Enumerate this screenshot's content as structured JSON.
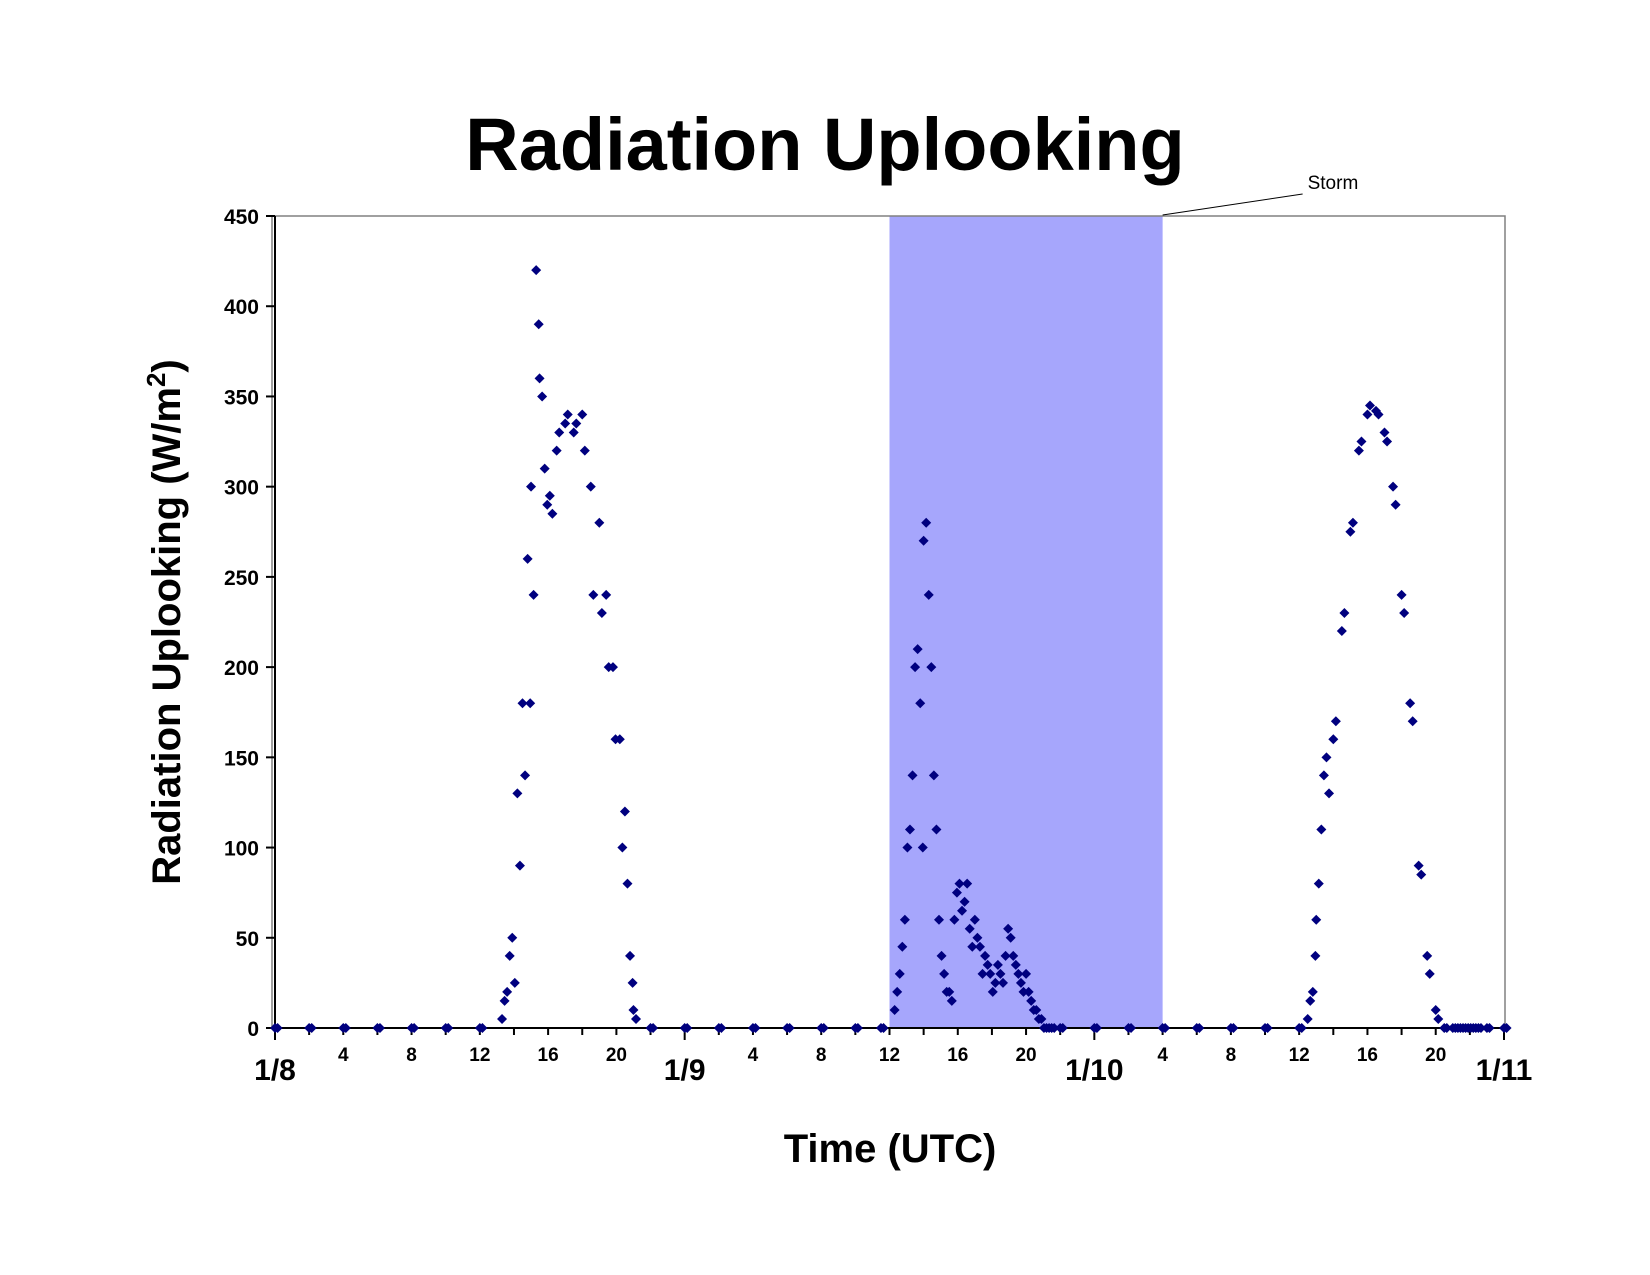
{
  "chart_data": {
    "type": "scatter",
    "title": "Radiation Uplooking",
    "ylabel_main": "Radiation Uplooking (W/m",
    "ylabel_sup": "2",
    "ylabel_close": ")",
    "xlabel": "Time (UTC)",
    "ylim": [
      0,
      450
    ],
    "yticks": [
      0,
      50,
      100,
      150,
      200,
      250,
      300,
      350,
      400,
      450
    ],
    "xlim_hours": [
      0,
      72
    ],
    "day_labels": [
      "1/8",
      "1/9",
      "1/10",
      "1/11"
    ],
    "hour_labels": [
      {
        "day": "1/8",
        "hours": [
          "4",
          "8",
          "12",
          "16",
          "20"
        ]
      },
      {
        "day": "1/9",
        "hours": [
          "4",
          "8",
          "12",
          "16",
          "20"
        ]
      },
      {
        "day": "1/10",
        "hours": [
          "4",
          "8",
          "12",
          "16",
          "20"
        ]
      }
    ],
    "grid": false,
    "legend": "none",
    "marker": "diamond",
    "colors": {
      "points": "#00007f",
      "storm_band": "#a6a6fc",
      "axis": "#808080"
    },
    "annotation": {
      "text": "Storm",
      "region": {
        "start": "1/9 12",
        "end": "1/10 4"
      }
    },
    "series": [
      {
        "x_hours": [
          0,
          2,
          4,
          6,
          8,
          10,
          12,
          13.3,
          13.6,
          13.9,
          14.2,
          14.5,
          14.8,
          15.0,
          15.3,
          15.5,
          15.8,
          16.1,
          16.5,
          17.0,
          17.5,
          18.0,
          18.5,
          19.0,
          19.4,
          19.8,
          20.2,
          20.5,
          20.8,
          21.0,
          22,
          24,
          26,
          28,
          30,
          32,
          34,
          35.5,
          36.3,
          36.6,
          36.9,
          37.2,
          37.5,
          37.8,
          38.0,
          38.3,
          38.6,
          38.9,
          39.2,
          39.5,
          39.8,
          40.1,
          40.4,
          40.7,
          41.0,
          41.3,
          41.6,
          41.9,
          42.2,
          42.5,
          42.8,
          43.1,
          43.4,
          43.7,
          44.0,
          44.3,
          44.6,
          44.9,
          45.2,
          45.5,
          46,
          48,
          50,
          52,
          54,
          56,
          58,
          60,
          60.5,
          60.8,
          61.0,
          61.3,
          61.6,
          62.0,
          62.5,
          63.0,
          63.5,
          64.0,
          64.5,
          65.0,
          65.5,
          66.0,
          66.5,
          67.0,
          67.5,
          68.0,
          68.5,
          69.0,
          69.3,
          69.6,
          69.9,
          70.2,
          70.5,
          71,
          72
        ],
        "y": [
          0,
          0,
          0,
          0,
          0,
          0,
          0,
          5,
          20,
          50,
          130,
          180,
          260,
          300,
          420,
          360,
          310,
          295,
          320,
          335,
          330,
          340,
          300,
          280,
          240,
          200,
          160,
          120,
          40,
          10,
          0,
          0,
          0,
          0,
          0,
          0,
          0,
          0,
          10,
          30,
          60,
          110,
          200,
          180,
          270,
          240,
          140,
          60,
          30,
          20,
          60,
          80,
          70,
          55,
          60,
          45,
          40,
          30,
          25,
          30,
          40,
          50,
          35,
          25,
          30,
          15,
          10,
          5,
          0,
          0,
          0,
          0,
          0,
          0,
          0,
          0,
          0,
          0,
          5,
          20,
          60,
          110,
          150,
          160,
          220,
          275,
          320,
          340,
          342,
          330,
          300,
          240,
          180,
          90,
          40,
          10,
          0,
          0,
          0,
          0,
          0,
          0,
          0,
          0,
          0
        ],
        "y_alt": [
          0,
          0,
          0,
          0,
          0,
          0,
          0,
          15,
          40,
          25,
          90,
          140,
          180,
          240,
          390,
          350,
          290,
          285,
          330,
          340,
          335,
          320,
          240,
          230,
          200,
          160,
          100,
          80,
          25,
          5,
          0,
          0,
          0,
          0,
          0,
          0,
          0,
          0,
          20,
          45,
          100,
          140,
          210,
          100,
          280,
          200,
          110,
          40,
          20,
          15,
          75,
          65,
          80,
          45,
          50,
          30,
          35,
          20,
          35,
          25,
          55,
          40,
          30,
          20,
          20,
          10,
          5,
          0,
          0,
          0,
          0,
          0,
          0,
          0,
          0,
          0,
          0,
          0,
          15,
          40,
          80,
          140,
          130,
          170,
          230,
          280,
          325,
          345,
          340,
          325,
          290,
          230,
          170,
          85,
          30,
          5,
          0,
          0,
          0,
          0,
          0,
          0,
          0,
          0,
          0
        ]
      }
    ]
  }
}
